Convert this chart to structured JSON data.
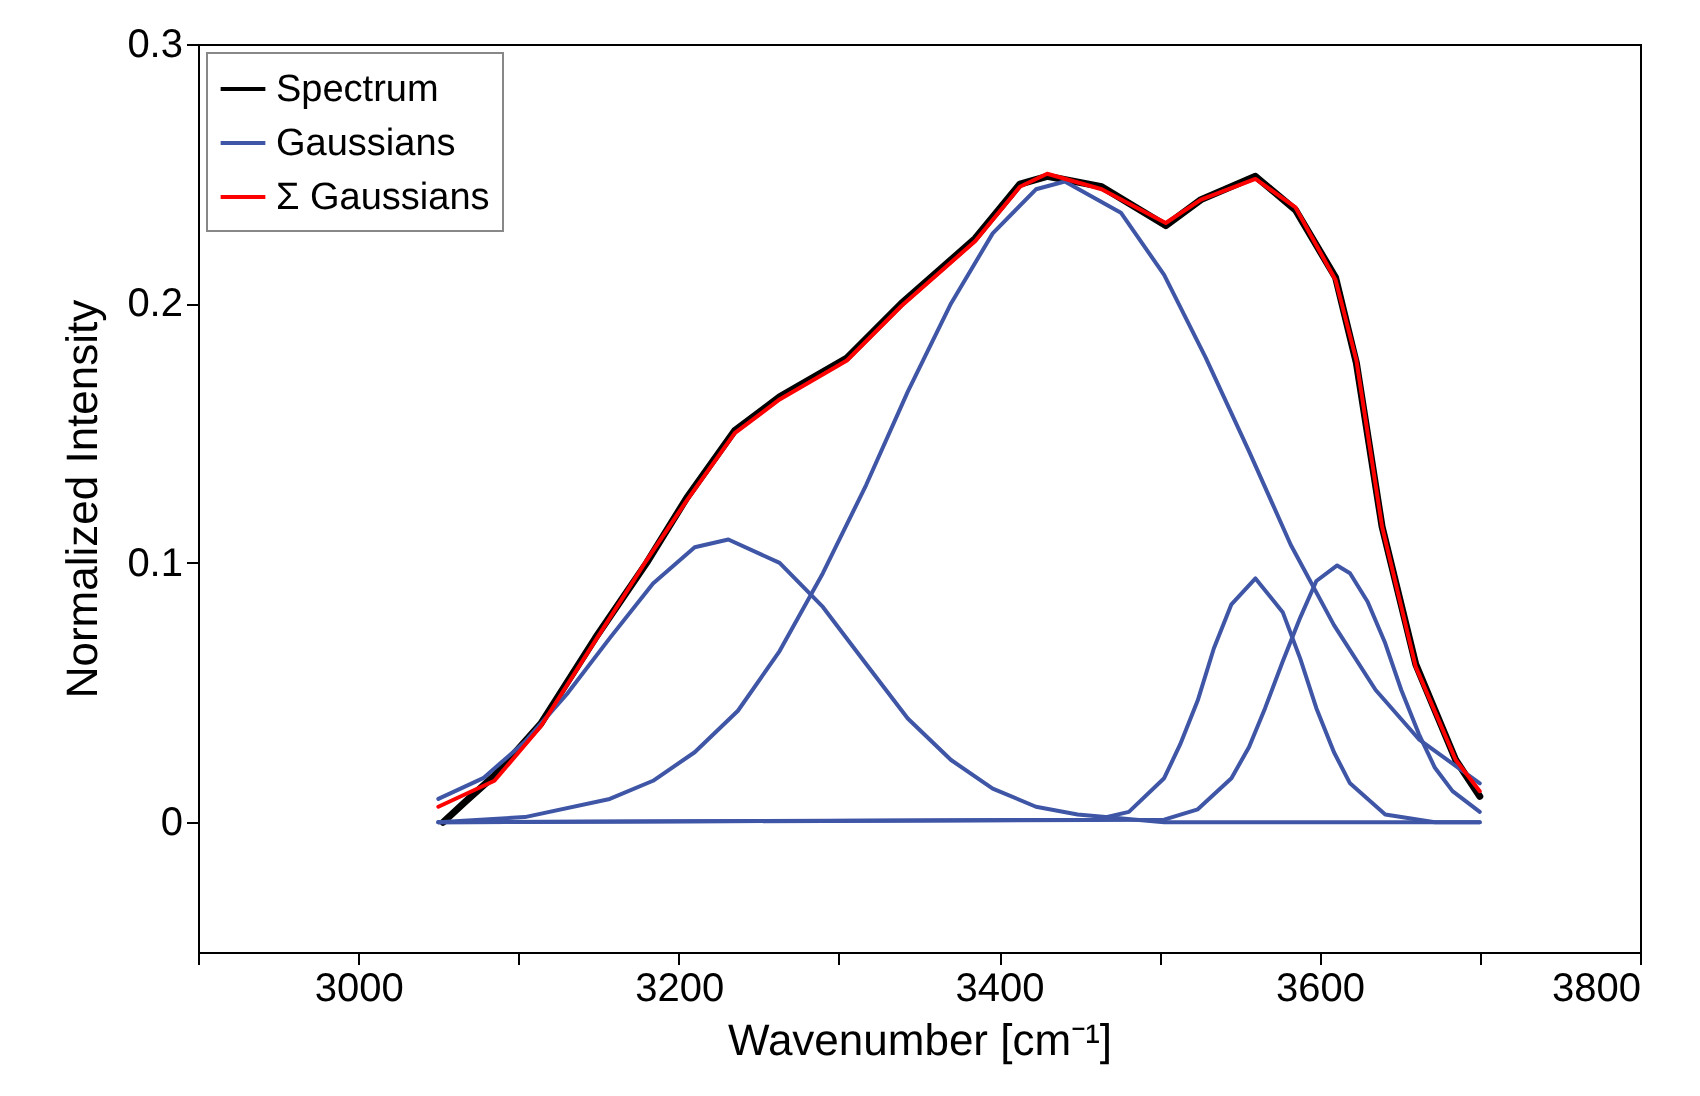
{
  "chart_data": {
    "type": "line",
    "xlabel": "Wavenumber [cm⁻¹]",
    "ylabel": "Normalized Intensity",
    "xlim": [
      2900,
      3800
    ],
    "xticks": [
      {
        "value": 2900,
        "label": null
      },
      3000,
      {
        "value": 3100,
        "label": null
      },
      3200,
      {
        "value": 3300,
        "label": null
      },
      3400,
      {
        "value": 3500,
        "label": null
      },
      3600,
      {
        "value": 3700,
        "label": null
      },
      3800
    ],
    "ylim": [
      -0.05,
      0.3
    ],
    "yticks": [
      0,
      0.1,
      0.2,
      0.3
    ],
    "grid": false,
    "legend": "top left",
    "line_style": "solid",
    "series": [
      {
        "name": "Spectrum",
        "color": "#000000",
        "x": [
          3053,
          3067,
          3085,
          3114,
          3148,
          3180,
          3205,
          3235,
          3263,
          3305,
          3339,
          3363,
          3385,
          3413,
          3430,
          3464,
          3504,
          3526,
          3560,
          3585,
          3610,
          3623,
          3639,
          3660,
          3685,
          3700
        ],
        "values": [
          0,
          0.008,
          0.018,
          0.038,
          0.071,
          0.1,
          0.125,
          0.151,
          0.164,
          0.179,
          0.2,
          0.213,
          0.225,
          0.246,
          0.249,
          0.245,
          0.23,
          0.24,
          0.249,
          0.236,
          0.21,
          0.177,
          0.114,
          0.061,
          0.024,
          0.01
        ]
      },
      {
        "name": "Gaussians",
        "color": "#3f56a6",
        "x": [
          3050,
          3078,
          3104,
          3131,
          3157,
          3184,
          3210,
          3231,
          3263,
          3290,
          3317,
          3343,
          3370,
          3396,
          3423,
          3449,
          3503,
          3588,
          3700
        ],
        "values": [
          0.009,
          0.017,
          0.031,
          0.05,
          0.071,
          0.092,
          0.106,
          0.109,
          0.1,
          0.083,
          0.061,
          0.04,
          0.024,
          0.013,
          0.006,
          0.003,
          0,
          0,
          0
        ]
      },
      {
        "color": "#3f56a6",
        "x": [
          3050,
          3104,
          3157,
          3184,
          3210,
          3237,
          3263,
          3290,
          3317,
          3343,
          3370,
          3396,
          3423,
          3441,
          3476,
          3503,
          3529,
          3556,
          3582,
          3609,
          3635,
          3662,
          3700
        ],
        "values": [
          0,
          0.002,
          0.009,
          0.016,
          0.027,
          0.043,
          0.066,
          0.096,
          0.13,
          0.166,
          0.2,
          0.227,
          0.244,
          0.247,
          0.235,
          0.211,
          0.179,
          0.143,
          0.107,
          0.076,
          0.051,
          0.032,
          0.015
        ]
      },
      {
        "color": "#3f56a6",
        "x": [
          3050,
          3460,
          3481,
          3503,
          3513,
          3524,
          3534,
          3545,
          3560,
          3577,
          3588,
          3598,
          3609,
          3619,
          3641,
          3672,
          3700
        ],
        "values": [
          0,
          0.001,
          0.004,
          0.017,
          0.03,
          0.047,
          0.067,
          0.084,
          0.094,
          0.081,
          0.063,
          0.044,
          0.027,
          0.015,
          0.003,
          0,
          0
        ]
      },
      {
        "color": "#3f56a6",
        "x": [
          3050,
          3503,
          3524,
          3545,
          3556,
          3566,
          3577,
          3588,
          3598,
          3611,
          3619,
          3630,
          3641,
          3651,
          3662,
          3672,
          3683,
          3700
        ],
        "values": [
          0,
          0.001,
          0.005,
          0.017,
          0.029,
          0.044,
          0.062,
          0.079,
          0.093,
          0.099,
          0.096,
          0.085,
          0.069,
          0.051,
          0.034,
          0.021,
          0.012,
          0.004
        ]
      },
      {
        "name": "Σ Gaussians",
        "color": "#ff0000",
        "x": [
          3050,
          3085,
          3114,
          3148,
          3180,
          3205,
          3235,
          3263,
          3305,
          3339,
          3363,
          3385,
          3413,
          3430,
          3464,
          3504,
          3526,
          3560,
          3585,
          3610,
          3623,
          3639,
          3660,
          3685,
          3700
        ],
        "values": [
          0.006,
          0.016,
          0.037,
          0.07,
          0.101,
          0.124,
          0.15,
          0.163,
          0.178,
          0.199,
          0.212,
          0.224,
          0.245,
          0.25,
          0.244,
          0.231,
          0.24,
          0.248,
          0.237,
          0.209,
          0.178,
          0.114,
          0.06,
          0.024,
          0.012
        ]
      }
    ]
  }
}
